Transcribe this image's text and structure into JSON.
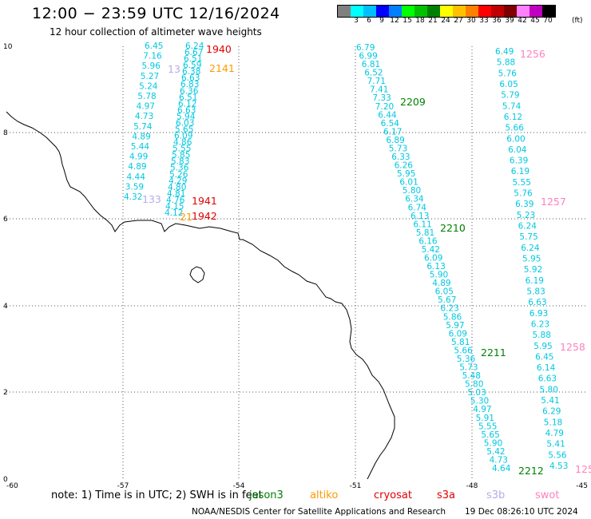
{
  "header": {
    "title": "12:00 − 23:59 UTC 12/16/2024",
    "subtitle": "12 hour collection of altimeter wave heights"
  },
  "colorbar": {
    "labels": [
      "",
      "3",
      "6",
      "9",
      "12",
      "15",
      "18",
      "21",
      "24",
      "27",
      "30",
      "33",
      "36",
      "39",
      "42",
      "45",
      "70"
    ],
    "colors": [
      "#808080",
      "#00ffff",
      "#00bfff",
      "#0000ff",
      "#0080ff",
      "#00ff00",
      "#00c000",
      "#008000",
      "#ffff00",
      "#ffc000",
      "#ff8000",
      "#ff0000",
      "#c00000",
      "#800000",
      "#ff80ff",
      "#c000c0",
      "#000000"
    ],
    "unit": "(ft)"
  },
  "axes": {
    "x_ticks": [
      "-60",
      "-57",
      "-54",
      "-51",
      "-48",
      "-45"
    ],
    "y_ticks": [
      "10",
      "8",
      "6",
      "4",
      "2",
      "0"
    ]
  },
  "colors": {
    "cyan": "#00c8e0",
    "red": "#e00000",
    "orange": "#ff9900",
    "green": "#008000",
    "lavender": "#b9a9e8",
    "pink": "#ff80c0"
  },
  "track_labels": [
    {
      "text": "1940",
      "color": "red"
    },
    {
      "text": "2141",
      "color": "orange"
    },
    {
      "text": "1941",
      "color": "red"
    },
    {
      "text": "1942",
      "color": "red"
    },
    {
      "text": "2209",
      "color": "green"
    },
    {
      "text": "2210",
      "color": "green"
    },
    {
      "text": "2211",
      "color": "green"
    },
    {
      "text": "2212",
      "color": "green"
    },
    {
      "text": "1256",
      "color": "pink"
    },
    {
      "text": "1257",
      "color": "pink"
    },
    {
      "text": "1258",
      "color": "pink"
    },
    {
      "text": "125",
      "color": "pink"
    },
    {
      "text": "13",
      "color": "lavender"
    },
    {
      "text": "133",
      "color": "lavender"
    },
    {
      "text": "21",
      "color": "orange"
    }
  ],
  "tracks": {
    "track_a": [
      "6.45",
      "7.16",
      "5.96",
      "5.27",
      "5.24",
      "5.78",
      "4.97",
      "4.73",
      "5.74",
      "4.89",
      "5.44",
      "4.99",
      "4.89",
      "4.44",
      "3.59",
      "4.32"
    ],
    "track_b": [
      "6.24",
      "6.67",
      "6.51",
      "6.59",
      "6.38",
      "6.63",
      "6.83",
      "6.36",
      "6.51",
      "6.12",
      "6.63",
      "5.94",
      "6.03",
      "5.65",
      "6.09",
      "4.86",
      "5.55",
      "5.85",
      "5.83",
      "5.36",
      "5.26",
      "4.29",
      "4.80",
      "4.81",
      "4.76",
      "4.15",
      "4.12"
    ],
    "track_c": [
      "6.79",
      "6.99",
      "6.81",
      "6.52",
      "7.71",
      "7.41",
      "7.33",
      "7.20",
      "6.44",
      "6.54",
      "6.17",
      "6.89",
      "5.73",
      "6.33",
      "6.26",
      "5.95",
      "6.01",
      "5.80",
      "6.34",
      "6.74",
      "6.13",
      "6.11",
      "5.81",
      "6.16",
      "5.42",
      "6.09",
      "6.13",
      "5.90",
      "4.89",
      "6.05",
      "5.67",
      "6.23",
      "5.86",
      "5.97",
      "6.09",
      "5.81",
      "5.66",
      "5.36",
      "5.73",
      "5.48",
      "5.80",
      "5.03",
      "5.30",
      "4.97",
      "5.91",
      "5.55",
      "5.65",
      "5.90",
      "5.42",
      "4.73",
      "4.64"
    ],
    "track_d": [
      "6.49",
      "5.88",
      "5.76",
      "6.05",
      "5.79",
      "5.74",
      "6.12",
      "5.66",
      "6.00",
      "6.04",
      "6.39",
      "6.19",
      "5.55",
      "5.76",
      "6.39",
      "5.23",
      "6.24",
      "5.75",
      "6.24",
      "5.95",
      "5.92",
      "6.19",
      "5.83",
      "6.63",
      "6.93",
      "6.23",
      "5.88",
      "5.95",
      "6.45",
      "6.14",
      "6.63",
      "5.80",
      "5.41",
      "6.29",
      "5.18",
      "4.79",
      "5.41",
      "5.56",
      "4.53"
    ]
  },
  "footer": {
    "note": "note:  1) Time is in UTC; 2) SWH is in feet",
    "satellites": [
      {
        "name": "jason3",
        "color": "green"
      },
      {
        "name": "altiko",
        "color": "orange"
      },
      {
        "name": "cryosat",
        "color": "red"
      },
      {
        "name": "s3a",
        "color": "red"
      },
      {
        "name": "s3b",
        "color": "lavender"
      },
      {
        "name": "swot",
        "color": "pink"
      }
    ],
    "credit": "NOAA/NESDIS Center for Satellite Applications and Research",
    "timestamp": "19 Dec 08:26:10 UTC 2024"
  }
}
